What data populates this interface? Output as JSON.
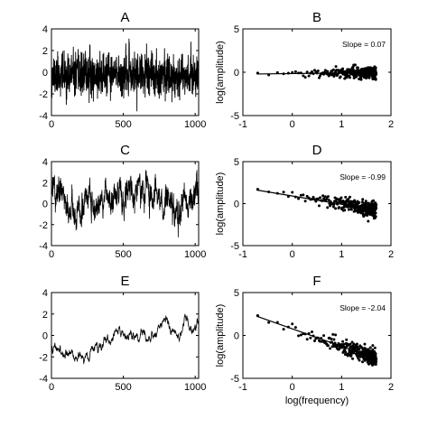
{
  "figure": {
    "panels": [
      "A",
      "B",
      "C",
      "D",
      "E",
      "F"
    ]
  },
  "chart_data": [
    {
      "panel": "A",
      "type": "line",
      "title": "A",
      "xlabel": "",
      "ylabel": "",
      "xlim": [
        0,
        1024
      ],
      "ylim": [
        -4,
        4
      ],
      "xticks": [
        "0",
        "500",
        "1000"
      ],
      "yticks": [
        "4",
        "2",
        "0",
        "-2",
        "-4"
      ],
      "signal": "white-noise",
      "n": 1024,
      "mean": 0,
      "std": 1.0,
      "range": [
        -3.6,
        3.1
      ],
      "color": "#000000"
    },
    {
      "panel": "B",
      "type": "scatter",
      "title": "B",
      "xlabel": "",
      "ylabel": "log(amplitude)",
      "xlim": [
        -1,
        2
      ],
      "ylim": [
        -5,
        5
      ],
      "xticks": [
        "-1",
        "0",
        "1",
        "2"
      ],
      "yticks": [
        "5",
        "0",
        "-5"
      ],
      "annotation": "Slope = 0.07",
      "slope": 0.07,
      "fit_x": [
        -0.7,
        1.7
      ],
      "fit_y": [
        -0.2,
        -0.03
      ],
      "points_x_range": [
        -0.7,
        1.7
      ],
      "scatter_spread": 0.35,
      "color": "#000000"
    },
    {
      "panel": "C",
      "type": "line",
      "title": "C",
      "xlabel": "",
      "ylabel": "",
      "xlim": [
        0,
        1024
      ],
      "ylim": [
        -4,
        4
      ],
      "xticks": [
        "0",
        "500",
        "1000"
      ],
      "yticks": [
        "4",
        "2",
        "0",
        "-2",
        "-4"
      ],
      "signal": "pink-noise",
      "n": 1024,
      "range": [
        -3.2,
        3.2
      ],
      "color": "#000000"
    },
    {
      "panel": "D",
      "type": "scatter",
      "title": "D",
      "xlabel": "",
      "ylabel": "log(amplitude)",
      "xlim": [
        -1,
        2
      ],
      "ylim": [
        -5,
        5
      ],
      "xticks": [
        "-1",
        "0",
        "1",
        "2"
      ],
      "yticks": [
        "5",
        "0",
        "-5"
      ],
      "annotation": "Slope = -0.99",
      "slope": -0.99,
      "fit_x": [
        -0.7,
        1.7
      ],
      "fit_y": [
        1.6,
        -0.78
      ],
      "points_x_range": [
        -0.7,
        1.7
      ],
      "scatter_spread": 0.45,
      "color": "#000000"
    },
    {
      "panel": "E",
      "type": "line",
      "title": "E",
      "xlabel": "",
      "ylabel": "",
      "xlim": [
        0,
        1024
      ],
      "ylim": [
        -4,
        4
      ],
      "xticks": [
        "0",
        "500",
        "1000"
      ],
      "yticks": [
        "4",
        "2",
        "0",
        "-2",
        "-4"
      ],
      "signal": "brown-noise",
      "n": 1024,
      "range": [
        -2.6,
        2.0
      ],
      "color": "#000000"
    },
    {
      "panel": "F",
      "type": "scatter",
      "title": "F",
      "xlabel": "log(frequency)",
      "ylabel": "log(amplitude)",
      "xlim": [
        -1,
        2
      ],
      "ylim": [
        -5,
        5
      ],
      "xticks": [
        "-1",
        "0",
        "1",
        "2"
      ],
      "yticks": [
        "5",
        "0",
        "-5"
      ],
      "annotation": "Slope = -2.04",
      "slope": -2.04,
      "fit_x": [
        -0.7,
        1.7
      ],
      "fit_y": [
        2.2,
        -2.7
      ],
      "points_x_range": [
        -0.7,
        1.7
      ],
      "scatter_spread": 0.5,
      "color": "#000000"
    }
  ]
}
